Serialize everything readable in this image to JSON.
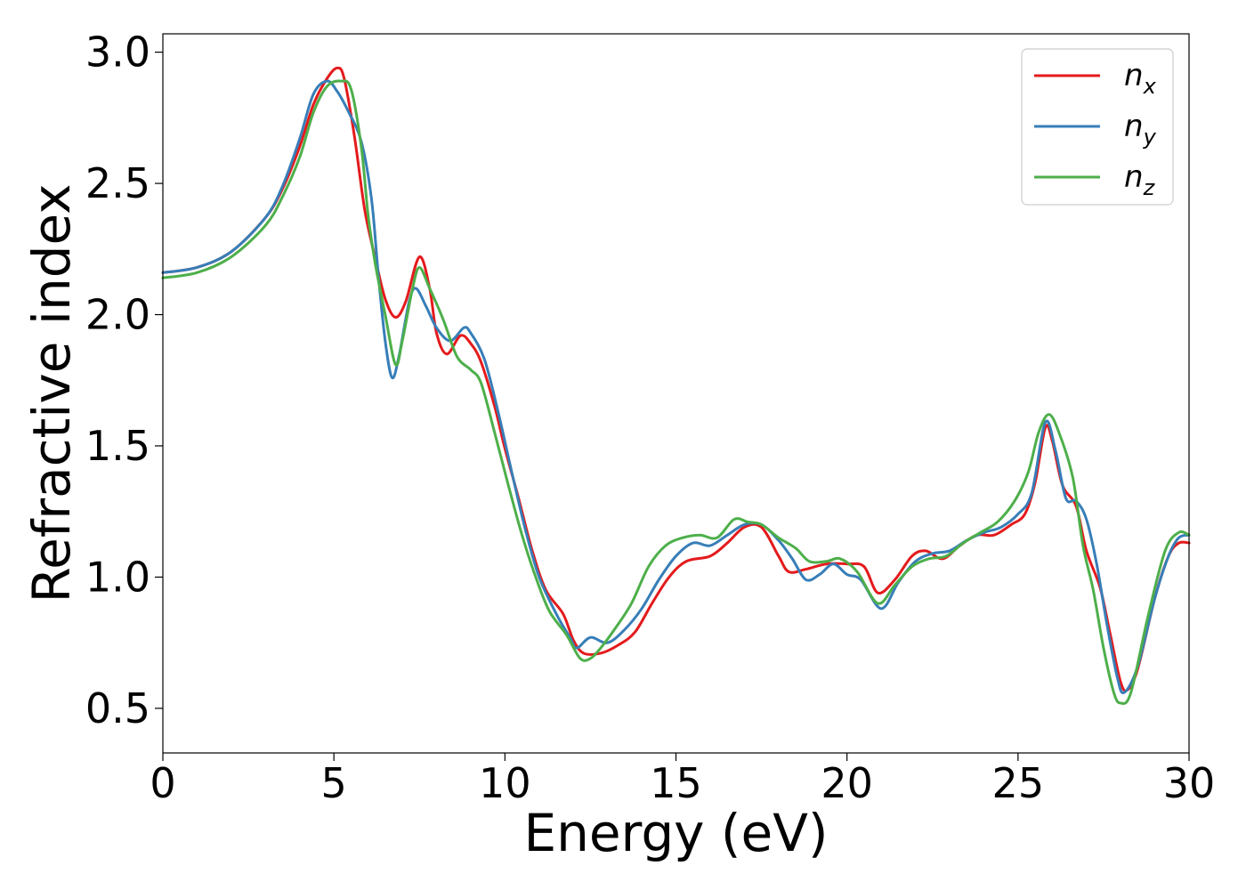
{
  "chart_data": {
    "type": "line",
    "title": "",
    "xlabel": "Energy (eV)",
    "ylabel": "Refractive index",
    "xlim": [
      0,
      30
    ],
    "ylim": [
      0.33,
      3.07
    ],
    "xticks": [
      0,
      5,
      10,
      15,
      20,
      25,
      30
    ],
    "xtick_labels": [
      "0",
      "5",
      "10",
      "15",
      "20",
      "25",
      "30"
    ],
    "yticks": [
      0.5,
      1.0,
      1.5,
      2.0,
      2.5,
      3.0
    ],
    "ytick_labels": [
      "0.5",
      "1.0",
      "1.5",
      "2.0",
      "2.5",
      "3.0"
    ],
    "grid": false,
    "legend_position": "top-right",
    "series": [
      {
        "name": "n_x",
        "label_base": "n",
        "label_sub": "x",
        "color": "#e41a1c",
        "points": [
          [
            0,
            2.16
          ],
          [
            1,
            2.18
          ],
          [
            2,
            2.24
          ],
          [
            3,
            2.37
          ],
          [
            3.5,
            2.48
          ],
          [
            4,
            2.64
          ],
          [
            4.4,
            2.8
          ],
          [
            4.8,
            2.9
          ],
          [
            5.1,
            2.94
          ],
          [
            5.3,
            2.9
          ],
          [
            5.6,
            2.68
          ],
          [
            5.9,
            2.4
          ],
          [
            6.2,
            2.22
          ],
          [
            6.5,
            2.06
          ],
          [
            6.8,
            1.99
          ],
          [
            7.1,
            2.05
          ],
          [
            7.5,
            2.22
          ],
          [
            7.8,
            2.1
          ],
          [
            8.0,
            1.93
          ],
          [
            8.3,
            1.85
          ],
          [
            8.7,
            1.92
          ],
          [
            9.0,
            1.89
          ],
          [
            9.3,
            1.82
          ],
          [
            9.7,
            1.65
          ],
          [
            10.0,
            1.49
          ],
          [
            10.4,
            1.3
          ],
          [
            10.8,
            1.1
          ],
          [
            11.2,
            0.95
          ],
          [
            11.7,
            0.86
          ],
          [
            12.0,
            0.76
          ],
          [
            12.3,
            0.71
          ],
          [
            12.8,
            0.71
          ],
          [
            13.3,
            0.74
          ],
          [
            13.8,
            0.79
          ],
          [
            14.3,
            0.9
          ],
          [
            14.8,
            1.0
          ],
          [
            15.3,
            1.06
          ],
          [
            16.0,
            1.08
          ],
          [
            16.5,
            1.13
          ],
          [
            17.0,
            1.19
          ],
          [
            17.5,
            1.19
          ],
          [
            18.0,
            1.08
          ],
          [
            18.3,
            1.02
          ],
          [
            18.8,
            1.03
          ],
          [
            19.4,
            1.05
          ],
          [
            20.0,
            1.05
          ],
          [
            20.5,
            1.04
          ],
          [
            20.9,
            0.94
          ],
          [
            21.4,
            0.99
          ],
          [
            21.9,
            1.08
          ],
          [
            22.3,
            1.1
          ],
          [
            22.8,
            1.07
          ],
          [
            23.3,
            1.12
          ],
          [
            23.8,
            1.16
          ],
          [
            24.3,
            1.16
          ],
          [
            24.8,
            1.2
          ],
          [
            25.2,
            1.24
          ],
          [
            25.5,
            1.36
          ],
          [
            25.8,
            1.57
          ],
          [
            26.0,
            1.52
          ],
          [
            26.3,
            1.35
          ],
          [
            26.7,
            1.27
          ],
          [
            27.0,
            1.1
          ],
          [
            27.4,
            0.96
          ],
          [
            27.7,
            0.78
          ],
          [
            28.0,
            0.6
          ],
          [
            28.2,
            0.57
          ],
          [
            28.5,
            0.65
          ],
          [
            29.0,
            0.92
          ],
          [
            29.4,
            1.08
          ],
          [
            29.7,
            1.13
          ],
          [
            30,
            1.13
          ]
        ]
      },
      {
        "name": "n_y",
        "label_base": "n",
        "label_sub": "y",
        "color": "#377eb8",
        "points": [
          [
            0,
            2.16
          ],
          [
            1,
            2.18
          ],
          [
            2,
            2.24
          ],
          [
            3,
            2.37
          ],
          [
            3.5,
            2.49
          ],
          [
            4,
            2.67
          ],
          [
            4.4,
            2.84
          ],
          [
            4.8,
            2.89
          ],
          [
            5.1,
            2.85
          ],
          [
            5.4,
            2.78
          ],
          [
            5.8,
            2.66
          ],
          [
            6.1,
            2.44
          ],
          [
            6.3,
            2.15
          ],
          [
            6.5,
            1.9
          ],
          [
            6.7,
            1.76
          ],
          [
            6.9,
            1.84
          ],
          [
            7.2,
            2.05
          ],
          [
            7.4,
            2.1
          ],
          [
            7.7,
            2.03
          ],
          [
            8.0,
            1.95
          ],
          [
            8.4,
            1.9
          ],
          [
            8.8,
            1.95
          ],
          [
            9.0,
            1.93
          ],
          [
            9.4,
            1.83
          ],
          [
            9.8,
            1.63
          ],
          [
            10.2,
            1.4
          ],
          [
            10.6,
            1.18
          ],
          [
            11.0,
            1.0
          ],
          [
            11.5,
            0.86
          ],
          [
            11.9,
            0.77
          ],
          [
            12.1,
            0.73
          ],
          [
            12.5,
            0.77
          ],
          [
            13.0,
            0.75
          ],
          [
            13.5,
            0.8
          ],
          [
            14.0,
            0.88
          ],
          [
            14.5,
            0.99
          ],
          [
            15.0,
            1.08
          ],
          [
            15.5,
            1.13
          ],
          [
            16.0,
            1.12
          ],
          [
            16.5,
            1.16
          ],
          [
            17.0,
            1.2
          ],
          [
            17.5,
            1.2
          ],
          [
            18.0,
            1.14
          ],
          [
            18.4,
            1.07
          ],
          [
            18.8,
            0.99
          ],
          [
            19.2,
            1.01
          ],
          [
            19.6,
            1.05
          ],
          [
            20.0,
            1.01
          ],
          [
            20.4,
            0.99
          ],
          [
            21.0,
            0.88
          ],
          [
            21.5,
            0.98
          ],
          [
            22.0,
            1.06
          ],
          [
            22.5,
            1.09
          ],
          [
            23.0,
            1.1
          ],
          [
            23.5,
            1.14
          ],
          [
            24.0,
            1.17
          ],
          [
            24.5,
            1.19
          ],
          [
            25.0,
            1.24
          ],
          [
            25.4,
            1.32
          ],
          [
            25.8,
            1.59
          ],
          [
            26.1,
            1.48
          ],
          [
            26.4,
            1.3
          ],
          [
            26.7,
            1.29
          ],
          [
            27.0,
            1.22
          ],
          [
            27.3,
            1.05
          ],
          [
            27.6,
            0.82
          ],
          [
            27.9,
            0.62
          ],
          [
            28.1,
            0.56
          ],
          [
            28.5,
            0.66
          ],
          [
            29.0,
            0.92
          ],
          [
            29.4,
            1.08
          ],
          [
            29.7,
            1.15
          ],
          [
            30,
            1.16
          ]
        ]
      },
      {
        "name": "n_z",
        "label_base": "n",
        "label_sub": "z",
        "color": "#4daf4a",
        "points": [
          [
            0,
            2.14
          ],
          [
            1,
            2.16
          ],
          [
            2,
            2.22
          ],
          [
            3,
            2.34
          ],
          [
            3.5,
            2.45
          ],
          [
            4,
            2.6
          ],
          [
            4.4,
            2.77
          ],
          [
            4.8,
            2.87
          ],
          [
            5.2,
            2.89
          ],
          [
            5.5,
            2.86
          ],
          [
            5.8,
            2.64
          ],
          [
            6.0,
            2.38
          ],
          [
            6.2,
            2.2
          ],
          [
            6.5,
            2.0
          ],
          [
            6.8,
            1.81
          ],
          [
            7.0,
            1.9
          ],
          [
            7.3,
            2.1
          ],
          [
            7.5,
            2.18
          ],
          [
            7.8,
            2.1
          ],
          [
            8.2,
            1.98
          ],
          [
            8.6,
            1.84
          ],
          [
            9.0,
            1.79
          ],
          [
            9.3,
            1.74
          ],
          [
            9.7,
            1.55
          ],
          [
            10.1,
            1.35
          ],
          [
            10.5,
            1.16
          ],
          [
            10.9,
            1.0
          ],
          [
            11.3,
            0.87
          ],
          [
            11.8,
            0.78
          ],
          [
            12.2,
            0.69
          ],
          [
            12.5,
            0.69
          ],
          [
            12.8,
            0.73
          ],
          [
            13.2,
            0.8
          ],
          [
            13.7,
            0.9
          ],
          [
            14.2,
            1.04
          ],
          [
            14.7,
            1.12
          ],
          [
            15.2,
            1.15
          ],
          [
            15.7,
            1.16
          ],
          [
            16.2,
            1.15
          ],
          [
            16.7,
            1.22
          ],
          [
            17.1,
            1.21
          ],
          [
            17.5,
            1.2
          ],
          [
            18.0,
            1.15
          ],
          [
            18.5,
            1.11
          ],
          [
            18.9,
            1.06
          ],
          [
            19.4,
            1.06
          ],
          [
            19.8,
            1.07
          ],
          [
            20.3,
            1.02
          ],
          [
            20.9,
            0.9
          ],
          [
            21.4,
            0.97
          ],
          [
            21.9,
            1.04
          ],
          [
            22.4,
            1.07
          ],
          [
            22.9,
            1.08
          ],
          [
            23.4,
            1.13
          ],
          [
            23.9,
            1.17
          ],
          [
            24.4,
            1.21
          ],
          [
            24.9,
            1.29
          ],
          [
            25.3,
            1.4
          ],
          [
            25.6,
            1.55
          ],
          [
            25.9,
            1.62
          ],
          [
            26.2,
            1.55
          ],
          [
            26.6,
            1.38
          ],
          [
            26.9,
            1.12
          ],
          [
            27.2,
            0.95
          ],
          [
            27.5,
            0.73
          ],
          [
            27.8,
            0.56
          ],
          [
            28.0,
            0.52
          ],
          [
            28.3,
            0.56
          ],
          [
            28.8,
            0.85
          ],
          [
            29.3,
            1.1
          ],
          [
            29.7,
            1.17
          ],
          [
            30,
            1.16
          ]
        ]
      }
    ]
  }
}
